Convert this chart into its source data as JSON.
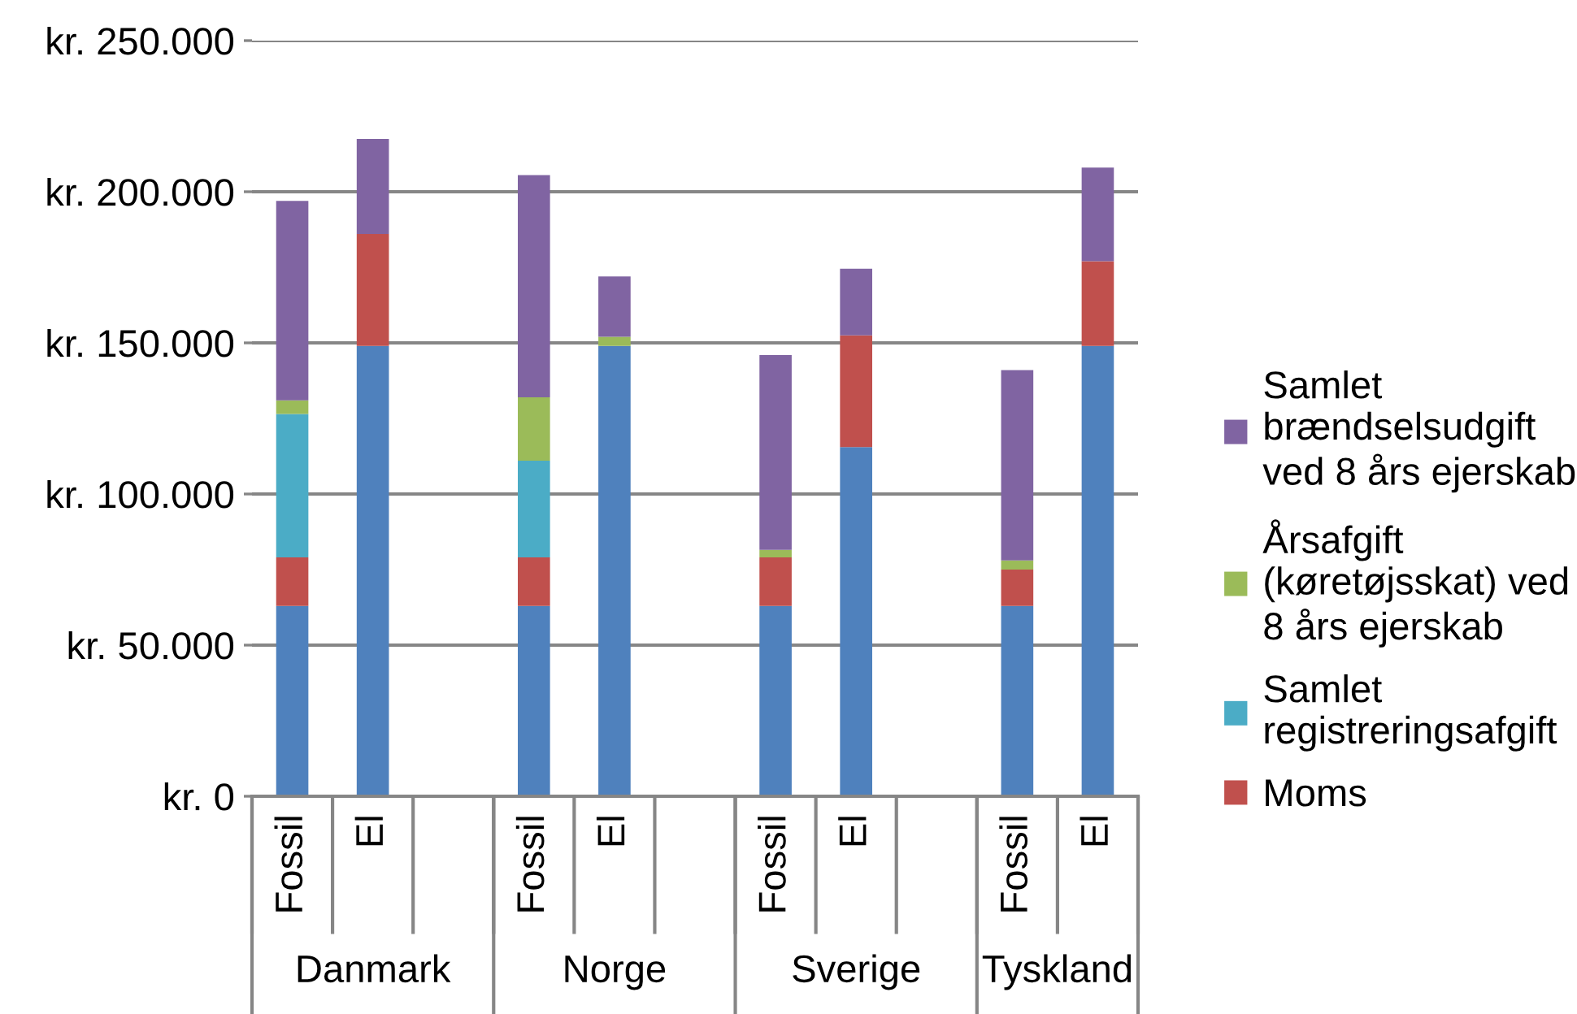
{
  "chart_data": {
    "type": "bar",
    "stacked": true,
    "categories": [
      "Fossil",
      "El",
      null,
      "Fossil",
      "El",
      null,
      "Fossil",
      "El",
      null,
      "Fossil",
      "El"
    ],
    "series": [
      {
        "color": "#4f81bd",
        "values": [
          63000,
          149000,
          null,
          63000,
          149000,
          null,
          63000,
          115500,
          null,
          63000,
          149000
        ]
      },
      {
        "name": "Moms",
        "color": "#c0504d",
        "values": [
          16000,
          37000,
          null,
          16000,
          null,
          null,
          16000,
          37000,
          null,
          12000,
          28000
        ]
      },
      {
        "name": "Samlet registreringsafgift",
        "color": "#4bacc6",
        "values": [
          47500,
          null,
          null,
          32000,
          null,
          null,
          null,
          null,
          null,
          null,
          null
        ]
      },
      {
        "name": "Årsafgift (køretøjsskat) ved 8 års ejerskab",
        "color": "#9bbb59",
        "values": [
          4500,
          null,
          null,
          21000,
          3000,
          null,
          2500,
          null,
          null,
          3000,
          null
        ]
      },
      {
        "name": "Samlet brændselsudgift ved 8 års ejerskab",
        "color": "#8064a2",
        "values": [
          66000,
          31500,
          null,
          73500,
          20000,
          null,
          64500,
          22000,
          null,
          63000,
          31000
        ]
      }
    ],
    "ylim": [
      0,
      250000
    ],
    "yticks": [
      {
        "value": 0,
        "label": "kr. 0"
      },
      {
        "value": 50000,
        "label": "kr. 50.000"
      },
      {
        "value": 100000,
        "label": "kr. 100.000"
      },
      {
        "value": 150000,
        "label": "kr. 150.000"
      },
      {
        "value": 200000,
        "label": "kr. 200.000"
      },
      {
        "value": 250000,
        "label": "kr. 250.000"
      }
    ],
    "grid": "y",
    "legend": "right",
    "annotations": [
      "Danmark",
      "Norge",
      "Sverige",
      "Tyskland"
    ]
  }
}
